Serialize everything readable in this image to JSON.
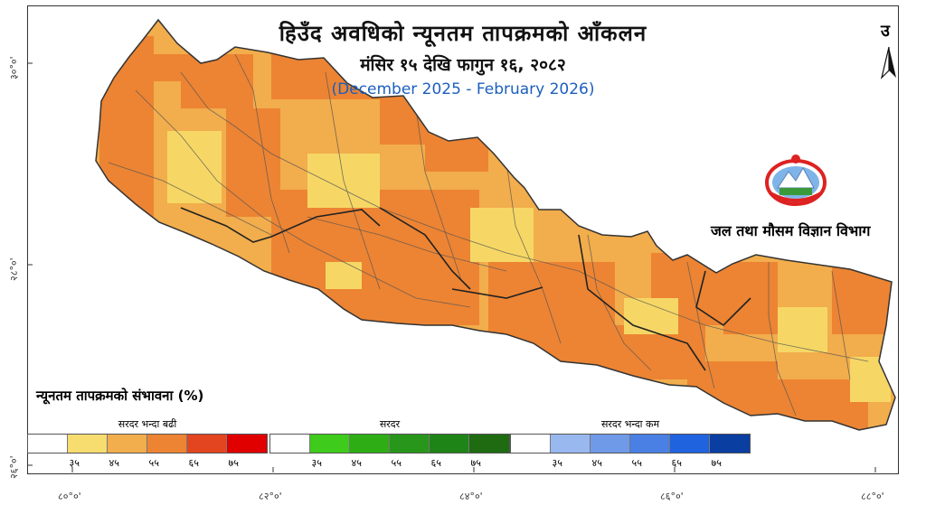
{
  "title": {
    "main": "हिउँद अवधिको न्यूनतम तापक्रमको आँकलन",
    "dates": "मंसिर १५ देखि फागुन १६, २०८२",
    "english": "(December 2025 - February 2026)"
  },
  "north_label": "उ",
  "agency": "जल तथा मौसम विज्ञान विभाग",
  "legend": {
    "title": "न्यूनतम तापक्रमको संभावना (%)",
    "groups": [
      {
        "label": "सरदर भन्दा बढी",
        "colors": [
          "#ffffff",
          "#f7dc6f",
          "#f2ad4c",
          "#ec8433",
          "#e2451f",
          "#e00000"
        ],
        "ticks": [
          "३५",
          "४५",
          "५५",
          "६५",
          "७५"
        ]
      },
      {
        "label": "सरदर",
        "colors": [
          "#ffffff",
          "#3ecb1b",
          "#2eae14",
          "#28961a",
          "#1f8418",
          "#1e6b12"
        ],
        "ticks": [
          "३५",
          "४५",
          "५५",
          "६५",
          "७५"
        ]
      },
      {
        "label": "सरदर भन्दा कम",
        "colors": [
          "#ffffff",
          "#9ab8f0",
          "#6f9ae8",
          "#4a80e4",
          "#1f63de",
          "#0a3ea0"
        ],
        "ticks": [
          "३५",
          "४५",
          "५५",
          "६५",
          "७५"
        ]
      }
    ]
  },
  "axes": {
    "lat_labels": [
      "३०°०'",
      "२८°०'",
      "२६°०'"
    ],
    "lon_labels": [
      "८०°०'",
      "८२°०'",
      "८४°०'",
      "८६°०'",
      "८८°०'"
    ]
  },
  "colors": {
    "light": "#f6d765",
    "medium": "#f2ad4c",
    "dark": "#ec8433",
    "border": "#555555",
    "outline": "#333333"
  }
}
